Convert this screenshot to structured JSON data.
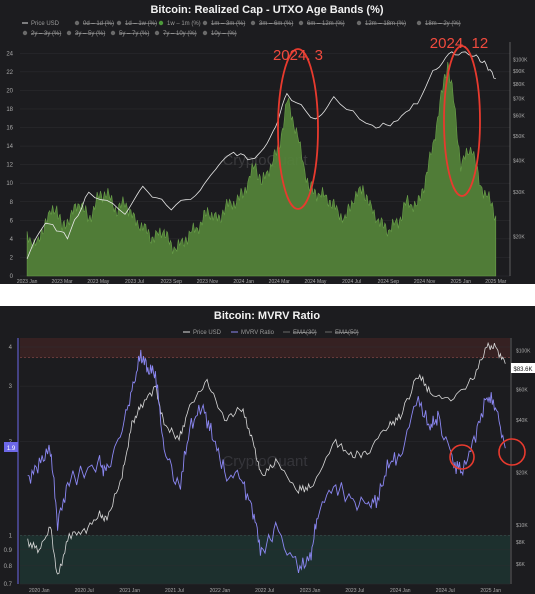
{
  "chart_data": [
    {
      "type": "area",
      "title": "Bitcoin: Realized Cap - UTXO Age Bands (%)",
      "legend": {
        "row1": [
          "Price USD",
          "0d – 1d (%)",
          "1d – 1w (%)",
          "1w – 1m (%)",
          "1m – 3m (%)",
          "3m – 6m (%)",
          "6m – 12m (%)",
          "12m – 18m (%)",
          "18m – 2y (%)"
        ],
        "row2": [
          "2y – 3y (%)",
          "3y – 5y (%)",
          "5y – 7y (%)",
          "7y – 10y (%)",
          "10y – (%)"
        ],
        "active": "1w – 1m (%)",
        "placement": "top"
      },
      "x_ticks": [
        "2023 Jan",
        "2023 Mar",
        "2023 May",
        "2023 Jul",
        "2023 Sep",
        "2023 Nov",
        "2024 Jan",
        "2024 Mar",
        "2024 May",
        "2024 Jul",
        "2024 Sep",
        "2024 Nov",
        "2025 Jan",
        "2025 Mar"
      ],
      "y_ticks_left": [
        "0",
        "2",
        "4",
        "6",
        "8",
        "10",
        "12",
        "14",
        "16",
        "18",
        "20",
        "22",
        "24"
      ],
      "y_ticks_right": [
        "$100K",
        "$90K",
        "$80K",
        "$70K",
        "$60K",
        "$50K",
        "$40K",
        "$30K",
        "$20K"
      ],
      "ylim_left": [
        0,
        25
      ],
      "y_scale_right": "log",
      "watermark": "CryptoQuant",
      "series": [
        {
          "name": "1w – 1m (%)",
          "color": "#5b8a3a",
          "x": [
            "2023-01-01",
            "2023-01-20",
            "2023-02-01",
            "2023-02-20",
            "2023-03-01",
            "2023-03-15",
            "2023-04-01",
            "2023-04-15",
            "2023-05-01",
            "2023-05-15",
            "2023-06-01",
            "2023-06-15",
            "2023-07-01",
            "2023-07-20",
            "2023-08-01",
            "2023-08-20",
            "2023-09-01",
            "2023-09-20",
            "2023-10-01",
            "2023-10-20",
            "2023-11-01",
            "2023-11-20",
            "2023-12-01",
            "2023-12-20",
            "2024-01-01",
            "2024-01-20",
            "2024-02-01",
            "2024-02-20",
            "2024-03-01",
            "2024-03-15",
            "2024-04-01",
            "2024-04-20",
            "2024-05-01",
            "2024-05-20",
            "2024-06-01",
            "2024-06-20",
            "2024-07-01",
            "2024-07-20",
            "2024-08-01",
            "2024-08-20",
            "2024-09-01",
            "2024-09-20",
            "2024-10-01",
            "2024-10-20",
            "2024-11-01",
            "2024-11-15",
            "2024-12-01",
            "2024-12-10",
            "2024-12-20",
            "2025-01-01",
            "2025-01-20",
            "2025-02-01",
            "2025-02-20",
            "2025-03-01"
          ],
          "values": [
            4,
            3.5,
            6,
            7.5,
            5,
            6.5,
            8,
            6,
            8.5,
            9,
            7,
            8,
            6,
            5,
            4,
            5,
            3,
            3.5,
            4.5,
            5.5,
            7,
            6,
            7.5,
            8,
            9,
            12,
            10,
            12.5,
            14,
            19,
            15,
            9.5,
            9,
            8.5,
            7.5,
            6,
            8,
            9.5,
            7.5,
            5.5,
            5,
            6,
            8,
            7.5,
            10,
            14,
            20,
            23,
            19,
            12,
            14,
            10,
            8,
            6.5
          ]
        },
        {
          "name": "Price USD",
          "color": "#e6e6e6",
          "x": [
            "2023-01-01",
            "2023-02-01",
            "2023-03-10",
            "2023-04-15",
            "2023-06-15",
            "2023-07-15",
            "2023-09-01",
            "2023-10-20",
            "2023-11-15",
            "2023-12-15",
            "2024-01-20",
            "2024-02-20",
            "2024-03-14",
            "2024-05-01",
            "2024-06-01",
            "2024-08-05",
            "2024-09-10",
            "2024-10-20",
            "2024-11-15",
            "2024-12-17",
            "2025-01-20",
            "2025-02-10",
            "2025-03-01"
          ],
          "values": [
            16500,
            23000,
            20000,
            30000,
            25000,
            31000,
            26000,
            30000,
            37000,
            43000,
            40000,
            52000,
            73000,
            58000,
            70000,
            54000,
            56000,
            68000,
            90000,
            106000,
            105000,
            97000,
            84000
          ]
        }
      ],
      "annotations": [
        "2024. 3",
        "2024. 12"
      ]
    },
    {
      "type": "line",
      "title": "Bitcoin: MVRV Ratio",
      "legend": {
        "items": [
          "Price USD",
          "MVRV Ratio",
          "EMA(30)",
          "EMA(50)"
        ],
        "placement": "top"
      },
      "x_ticks": [
        "2020 Jan",
        "2020 Jul",
        "2021 Jan",
        "2021 Jul",
        "2022 Jan",
        "2022 Jul",
        "2023 Jan",
        "2023 Jul",
        "2024 Jan",
        "2024 Jul",
        "2025 Jan"
      ],
      "y_ticks_left": [
        "4",
        "3",
        "2",
        "1",
        "0.9",
        "0.8",
        "0.7"
      ],
      "y_ticks_right": [
        "$100K",
        "$80K",
        "$60K",
        "$40K",
        "$20K",
        "$10K",
        "$8K",
        "$6K"
      ],
      "y_scale_left": "log",
      "y_scale_right": "log",
      "ylim_left": [
        0.7,
        4
      ],
      "current_labels": {
        "mvrv": "1.9",
        "price": "$83.6K"
      },
      "bands": {
        "upper": 3.7,
        "lower": 1
      },
      "watermark": "CryptoQuant",
      "series": [
        {
          "name": "MVRV Ratio",
          "color": "#8b87f2",
          "x": [
            "2019-11-15",
            "2020-01-01",
            "2020-02-15",
            "2020-03-15",
            "2020-05-01",
            "2020-07-01",
            "2020-09-01",
            "2020-10-01",
            "2020-12-01",
            "2021-01-10",
            "2021-02-15",
            "2021-03-15",
            "2021-04-15",
            "2021-05-20",
            "2021-07-20",
            "2021-09-01",
            "2021-10-20",
            "2021-12-01",
            "2022-01-20",
            "2022-03-30",
            "2022-05-15",
            "2022-06-18",
            "2022-08-15",
            "2022-11-15",
            "2023-01-01",
            "2023-02-01",
            "2023-04-15",
            "2023-06-15",
            "2023-08-20",
            "2023-10-01",
            "2023-11-15",
            "2024-01-01",
            "2024-03-14",
            "2024-05-01",
            "2024-06-01",
            "2024-08-05",
            "2024-09-10",
            "2024-11-01",
            "2024-12-17",
            "2025-01-20",
            "2025-03-01"
          ],
          "values": [
            1.5,
            1.7,
            1.9,
            1.1,
            1.5,
            1.6,
            1.7,
            1.6,
            2.2,
            2.9,
            3.8,
            3.4,
            3.3,
            1.9,
            1.4,
            2.2,
            2.6,
            2.1,
            1.6,
            1.5,
            1.2,
            0.88,
            1.05,
            0.78,
            0.85,
            1.15,
            1.45,
            1.3,
            1.25,
            1.3,
            1.7,
            1.8,
            2.7,
            2.2,
            2.4,
            1.7,
            1.6,
            2.1,
            2.8,
            2.6,
            1.9
          ]
        },
        {
          "name": "Price USD",
          "color": "#dcdcdc",
          "x": [
            "2019-11-15",
            "2020-01-01",
            "2020-02-15",
            "2020-03-15",
            "2020-05-01",
            "2020-07-01",
            "2020-09-01",
            "2020-10-01",
            "2020-12-01",
            "2021-01-10",
            "2021-02-15",
            "2021-04-15",
            "2021-05-20",
            "2021-07-20",
            "2021-09-01",
            "2021-11-10",
            "2022-01-20",
            "2022-03-30",
            "2022-05-15",
            "2022-06-18",
            "2022-08-15",
            "2022-11-15",
            "2023-01-01",
            "2023-04-15",
            "2023-06-15",
            "2023-08-20",
            "2023-11-15",
            "2024-01-01",
            "2024-03-14",
            "2024-05-01",
            "2024-08-05",
            "2024-10-20",
            "2024-12-17",
            "2025-01-20",
            "2025-03-01"
          ],
          "values": [
            8000,
            7200,
            9800,
            5000,
            8800,
            9200,
            11500,
            10800,
            19000,
            38000,
            48000,
            62000,
            38000,
            31000,
            48000,
            67000,
            40000,
            47000,
            30000,
            19000,
            23000,
            16000,
            16500,
            30000,
            25000,
            26000,
            37000,
            42000,
            73000,
            58000,
            54000,
            68000,
            106000,
            105000,
            84000
          ]
        }
      ]
    }
  ]
}
